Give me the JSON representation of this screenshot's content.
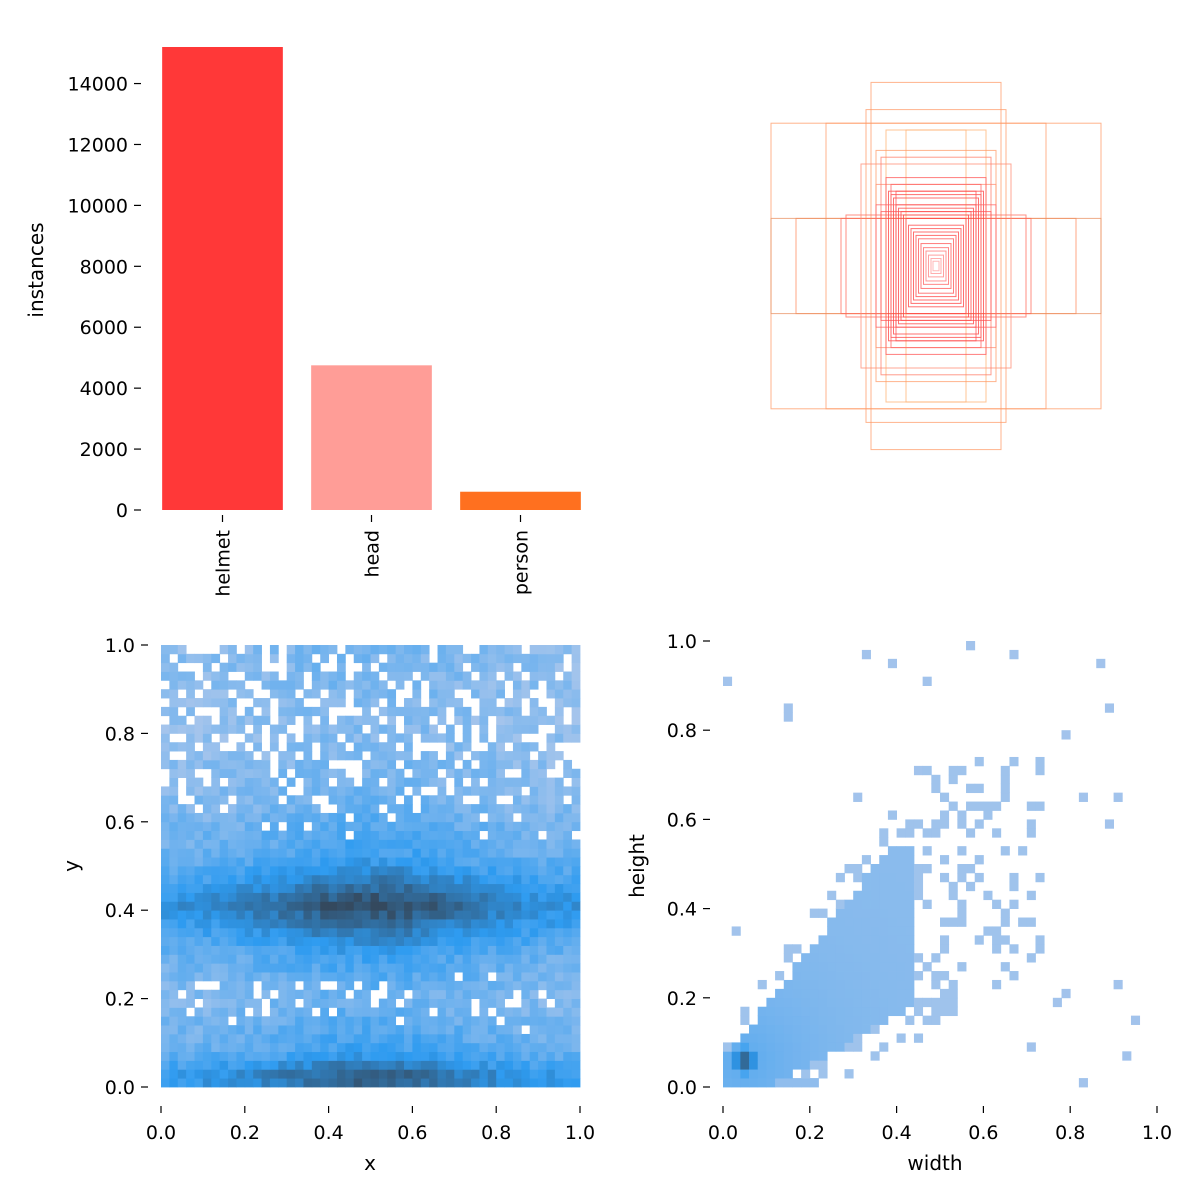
{
  "chart_data": [
    {
      "id": "class-counts",
      "type": "bar",
      "categories": [
        "helmet",
        "head",
        "person"
      ],
      "values": [
        15200,
        4750,
        600
      ],
      "colors": [
        "#ff3838",
        "#ff9d97",
        "#ff701f"
      ],
      "xlabel": "",
      "ylabel": "instances",
      "ylim": [
        0,
        15200
      ],
      "yticks": [
        0,
        2000,
        4000,
        6000,
        8000,
        10000,
        12000,
        14000
      ],
      "ytick_labels": [
        "0",
        "2000",
        "4000",
        "6000",
        "8000",
        "10000",
        "12000",
        "14000"
      ],
      "grid": false,
      "legend": "none"
    },
    {
      "id": "box-shapes",
      "type": "scatter",
      "description_type": "centered-rectangles",
      "boxes": [
        {
          "w": 0.33,
          "h": 0.21,
          "color": "#ff9a66"
        },
        {
          "w": 0.22,
          "h": 0.21,
          "color": "#ff9a66"
        },
        {
          "w": 0.13,
          "h": 0.27,
          "color": "#ff9a66"
        },
        {
          "w": 0.14,
          "h": 0.23,
          "color": "#ff9a66"
        },
        {
          "w": 0.28,
          "h": 0.07,
          "color": "#ff8a5c"
        },
        {
          "w": 0.33,
          "h": 0.07,
          "color": "#e89060"
        },
        {
          "w": 0.19,
          "h": 0.07,
          "color": "#ff6a5a"
        },
        {
          "w": 0.18,
          "h": 0.075,
          "color": "#ff6a5a"
        },
        {
          "w": 0.15,
          "h": 0.15,
          "color": "#ff8a70"
        },
        {
          "w": 0.12,
          "h": 0.12,
          "color": "#ff8a70"
        },
        {
          "w": 0.1,
          "h": 0.2,
          "color": "#ffb070"
        },
        {
          "w": 0.06,
          "h": 0.2,
          "color": "#ffb070"
        },
        {
          "w": 0.12,
          "h": 0.17,
          "color": "#ff9a66"
        },
        {
          "w": 0.11,
          "h": 0.16,
          "color": "#ff7a66"
        },
        {
          "w": 0.1,
          "h": 0.13,
          "color": "#ff5050"
        },
        {
          "w": 0.095,
          "h": 0.11,
          "color": "#ff4040"
        },
        {
          "w": 0.09,
          "h": 0.105,
          "color": "#ff4040"
        },
        {
          "w": 0.085,
          "h": 0.1,
          "color": "#ff4040"
        },
        {
          "w": 0.08,
          "h": 0.09,
          "color": "#ff4040"
        },
        {
          "w": 0.075,
          "h": 0.085,
          "color": "#ff4040"
        },
        {
          "w": 0.07,
          "h": 0.08,
          "color": "#ff4040"
        },
        {
          "w": 0.065,
          "h": 0.075,
          "color": "#ff4040"
        },
        {
          "w": 0.06,
          "h": 0.07,
          "color": "#ff4040"
        },
        {
          "w": 0.055,
          "h": 0.06,
          "color": "#ff4040"
        },
        {
          "w": 0.05,
          "h": 0.055,
          "color": "#ff4040"
        },
        {
          "w": 0.045,
          "h": 0.05,
          "color": "#ff4040"
        },
        {
          "w": 0.04,
          "h": 0.045,
          "color": "#ff4040"
        },
        {
          "w": 0.035,
          "h": 0.04,
          "color": "#ff5050"
        },
        {
          "w": 0.03,
          "h": 0.033,
          "color": "#ff5050"
        },
        {
          "w": 0.025,
          "h": 0.027,
          "color": "#ff6060"
        },
        {
          "w": 0.02,
          "h": 0.022,
          "color": "#ff7070"
        },
        {
          "w": 0.015,
          "h": 0.016,
          "color": "#ff8080"
        },
        {
          "w": 0.01,
          "h": 0.011,
          "color": "#ff9090"
        },
        {
          "w": 0.006,
          "h": 0.007,
          "color": "#ffa0a0"
        },
        {
          "w": 0.09,
          "h": 0.12,
          "color": "#ff6060"
        },
        {
          "w": 0.12,
          "h": 0.09,
          "color": "#ff6060"
        },
        {
          "w": 0.08,
          "h": 0.11,
          "color": "#ff5050"
        },
        {
          "w": 0.11,
          "h": 0.08,
          "color": "#ff5050"
        }
      ]
    },
    {
      "id": "xy-histogram",
      "type": "heatmap",
      "xlabel": "x",
      "ylabel": "y",
      "xlim": [
        0.0,
        1.0
      ],
      "ylim": [
        0.0,
        1.0
      ],
      "xticks": [
        0.0,
        0.2,
        0.4,
        0.6,
        0.8,
        1.0
      ],
      "xtick_labels": [
        "0.0",
        "0.2",
        "0.4",
        "0.6",
        "0.8",
        "1.0"
      ],
      "yticks": [
        0.0,
        0.2,
        0.4,
        0.6,
        0.8,
        1.0
      ],
      "ytick_labels": [
        "0.0",
        "0.2",
        "0.4",
        "0.6",
        "0.8",
        "1.0"
      ],
      "bins": 50,
      "density_profile_y": [
        {
          "y": 0.03,
          "level": 0.85
        },
        {
          "y": 0.08,
          "level": 0.45
        },
        {
          "y": 0.2,
          "level": 0.25
        },
        {
          "y": 0.3,
          "level": 0.45
        },
        {
          "y": 0.41,
          "level": 1.0
        },
        {
          "y": 0.52,
          "level": 0.45
        },
        {
          "y": 0.65,
          "level": 0.25
        },
        {
          "y": 0.8,
          "level": 0.15
        },
        {
          "y": 0.95,
          "level": 0.2
        }
      ],
      "color_low": "#a9c6ec",
      "color_mid": "#2e9bf0",
      "color_high": "#34495e",
      "grid": false
    },
    {
      "id": "wh-histogram",
      "type": "heatmap",
      "xlabel": "width",
      "ylabel": "height",
      "xlim": [
        0.0,
        1.0
      ],
      "ylim": [
        0.0,
        1.0
      ],
      "xticks": [
        0.0,
        0.2,
        0.4,
        0.6,
        0.8,
        1.0
      ],
      "xtick_labels": [
        "0.0",
        "0.2",
        "0.4",
        "0.6",
        "0.8",
        "1.0"
      ],
      "yticks": [
        0.0,
        0.2,
        0.4,
        0.6,
        0.8,
        1.0
      ],
      "ytick_labels": [
        "0.0",
        "0.2",
        "0.4",
        "0.6",
        "0.8",
        "1.0"
      ],
      "bins": 50,
      "peak": {
        "width": 0.05,
        "height": 0.06
      },
      "trend": "height ≈ 0.9 × width",
      "color_low": "#a9c6ec",
      "color_mid": "#2e9bf0",
      "color_high": "#34495e",
      "grid": false
    }
  ]
}
